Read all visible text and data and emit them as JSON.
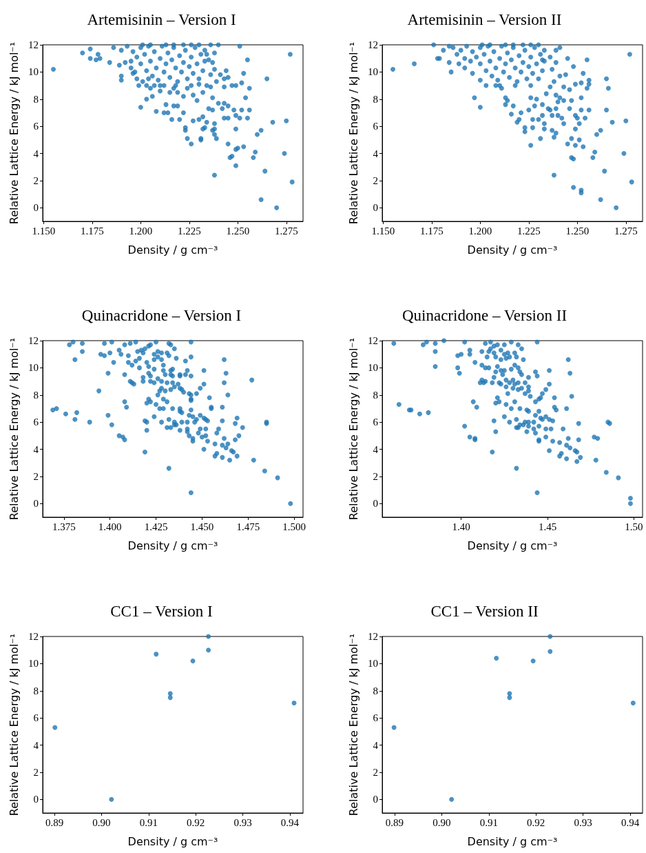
{
  "chart_data": [
    {
      "type": "scatter",
      "title": "Artemisinin – Version I",
      "xlabel": "Density / g cm⁻³",
      "ylabel": "Relative Lattice Energy / kJ mol⁻¹",
      "color": "#1f77b4",
      "marker": "circle",
      "xlim": [
        1.1495,
        1.2836
      ],
      "ylim": [
        -1,
        12
      ],
      "xticks": [
        {
          "value": 1.15,
          "label": "1.150"
        },
        {
          "value": 1.175,
          "label": "1.175"
        },
        {
          "value": 1.2,
          "label": "1.200"
        },
        {
          "value": 1.225,
          "label": "1.225"
        },
        {
          "value": 1.25,
          "label": "1.250"
        },
        {
          "value": 1.275,
          "label": "1.275"
        }
      ],
      "yticks": [
        0,
        2,
        4,
        6,
        8,
        10,
        12
      ],
      "x": [
        1.155,
        1.17,
        1.174,
        1.174,
        1.177,
        1.179,
        1.178,
        1.184,
        1.19,
        1.19,
        1.189,
        1.192,
        1.195,
        1.196,
        1.199,
        1.2,
        1.203,
        1.206,
        1.208,
        1.212,
        1.214,
        1.216,
        1.22,
        1.213,
        1.217,
        1.219,
        1.222,
        1.223,
        1.223,
        1.224,
        1.226,
        1.231,
        1.231,
        1.232,
        1.233,
        1.237,
        1.238,
        1.238,
        1.239,
        1.238,
        1.234,
        1.238,
        1.227,
        1.23,
        1.232,
        1.235,
        1.237,
        1.24,
        1.243,
        1.242,
        1.245,
        1.243,
        1.245,
        1.248,
        1.249,
        1.251,
        1.252,
        1.256,
        1.255,
        1.249,
        1.245,
        1.249,
        1.25,
        1.246,
        1.247,
        1.249,
        1.253,
        1.258,
        1.259,
        1.26,
        1.262,
        1.264,
        1.262,
        1.27,
        1.268,
        1.275,
        1.274,
        1.278,
        1.277,
        1.265,
        1.255,
        1.251,
        1.253,
        1.252,
        1.256,
        1.254,
        1.249,
        1.247,
        1.243,
        1.244,
        1.241,
        1.243,
        1.245,
        1.238,
        1.236,
        1.239,
        1.236,
        1.237,
        1.234,
        1.232,
        1.23,
        1.229,
        1.227,
        1.224,
        1.222,
        1.219,
        1.217,
        1.215,
        1.212,
        1.21,
        1.207,
        1.205,
        1.203,
        1.201,
        1.204,
        1.198,
        1.197,
        1.235,
        1.237,
        1.238,
        1.234,
        1.233,
        1.24,
        1.236,
        1.186,
        1.19,
        1.193,
        1.196,
        1.198,
        1.2,
        1.2,
        1.202,
        1.203,
        1.204,
        1.205,
        1.206,
        1.207,
        1.208,
        1.209,
        1.21,
        1.211,
        1.212,
        1.213,
        1.214,
        1.215,
        1.216,
        1.217,
        1.218,
        1.219,
        1.22,
        1.221,
        1.222,
        1.223,
        1.224,
        1.225,
        1.226,
        1.227,
        1.228,
        1.229,
        1.23,
        1.231,
        1.232,
        1.233,
        1.201,
        1.213,
        1.222,
        1.23,
        1.21,
        1.218,
        1.226,
        1.195,
        1.205,
        1.217,
        1.226
      ],
      "values": [
        10.2,
        11.4,
        11.7,
        11.0,
        10.9,
        11.0,
        11.3,
        10.7,
        9.7,
        9.4,
        10.5,
        10.7,
        10.3,
        9.9,
        9.0,
        7.4,
        8.0,
        8.2,
        7.1,
        7.0,
        7.0,
        6.5,
        6.5,
        7.6,
        7.5,
        7.5,
        7.0,
        5.9,
        5.7,
        5.1,
        4.7,
        5.1,
        5.0,
        5.8,
        5.9,
        5.7,
        5.8,
        5.4,
        5.1,
        2.4,
        6.3,
        6.2,
        6.4,
        6.5,
        6.7,
        7.3,
        7.2,
        7.7,
        7.7,
        7.3,
        7.5,
        6.6,
        6.6,
        7.2,
        6.8,
        6.6,
        7.2,
        7.2,
        6.6,
        5.8,
        4.7,
        4.3,
        4.4,
        3.7,
        3.8,
        3.1,
        4.5,
        3.7,
        4.1,
        5.4,
        5.7,
        2.7,
        0.6,
        0.0,
        6.3,
        6.4,
        4.0,
        1.9,
        11.3,
        9.5,
        10.9,
        11.9,
        9.9,
        9.2,
        8.8,
        8.1,
        9.0,
        9.0,
        8.9,
        10.1,
        9.8,
        9.5,
        9.6,
        10.2,
        9.8,
        9.3,
        8.9,
        8.1,
        9.0,
        8.5,
        9.1,
        7.9,
        8.3,
        8.8,
        8.2,
        8.5,
        8.8,
        8.5,
        9.0,
        8.6,
        9.0,
        8.8,
        9.0,
        9.3,
        9.5,
        9.5,
        10.0,
        10.9,
        10.7,
        11.4,
        11.3,
        11.6,
        12.0,
        12.0,
        11.8,
        11.6,
        11.9,
        11.5,
        11.1,
        11.8,
        10.6,
        11.3,
        10.1,
        11.9,
        10.8,
        9.7,
        11.5,
        10.3,
        9.4,
        11.0,
        11.9,
        10.0,
        10.6,
        11.4,
        9.6,
        10.9,
        11.8,
        10.3,
        9.3,
        11.2,
        10.0,
        10.7,
        11.6,
        9.5,
        10.4,
        11.1,
        9.9,
        11.8,
        10.6,
        9.5,
        11.3,
        10.1,
        10.8,
        12.0,
        12.0,
        12.0,
        12.0,
        9.0,
        9.0,
        9.0,
        10.8,
        12.0,
        12.0,
        12.0
      ]
    },
    {
      "type": "scatter",
      "title": "Artemisinin – Version II",
      "xlabel": "Density / g cm⁻³",
      "ylabel": "Relative Lattice Energy / kJ mol⁻¹",
      "color": "#1f77b4",
      "marker": "circle",
      "xlim": [
        1.1495,
        1.2836
      ],
      "ylim": [
        -1,
        12
      ],
      "xticks": [
        {
          "value": 1.15,
          "label": "1.150"
        },
        {
          "value": 1.175,
          "label": "1.175"
        },
        {
          "value": 1.2,
          "label": "1.200"
        },
        {
          "value": 1.225,
          "label": "1.225"
        },
        {
          "value": 1.25,
          "label": "1.250"
        },
        {
          "value": 1.275,
          "label": "1.275"
        }
      ],
      "yticks": [
        0,
        2,
        4,
        6,
        8,
        10,
        12
      ],
      "x": [
        1.155,
        1.166,
        1.185,
        1.197,
        1.2,
        1.231,
        1.226,
        1.238,
        1.239,
        1.237,
        1.233,
        1.233,
        1.227,
        1.223,
        1.223,
        1.219,
        1.22,
        1.216,
        1.221,
        1.227,
        1.23,
        1.232,
        1.237,
        1.24,
        1.242,
        1.239,
        1.24,
        1.243,
        1.246,
        1.247,
        1.249,
        1.235,
        1.236,
        1.239,
        1.241,
        1.234,
        1.236,
        1.238,
        1.241,
        1.244,
        1.243,
        1.246,
        1.237,
        1.239,
        1.236,
        1.239,
        1.241,
        1.233,
        1.232,
        1.213,
        1.213,
        1.217,
        1.214,
        1.226,
        1.229,
        1.232,
        1.225,
        1.228,
        1.203,
        1.208,
        1.211,
        1.2,
        1.196,
        1.192,
        1.189,
        1.184,
        1.179,
        1.178,
        1.181,
        1.176,
        1.265,
        1.266,
        1.265,
        1.256,
        1.256,
        1.255,
        1.245,
        1.255,
        1.248,
        1.253,
        1.249,
        1.252,
        1.252,
        1.252,
        1.256,
        1.254,
        1.25,
        1.251,
        1.249,
        1.243,
        1.251,
        1.247,
        1.245,
        1.249,
        1.253,
        1.247,
        1.248,
        1.258,
        1.259,
        1.26,
        1.262,
        1.268,
        1.275,
        1.274,
        1.278,
        1.264,
        1.262,
        1.27,
        1.248,
        1.252,
        1.252,
        1.238,
        1.277,
        1.186,
        1.19,
        1.193,
        1.196,
        1.198,
        1.2,
        1.2,
        1.202,
        1.203,
        1.204,
        1.205,
        1.206,
        1.207,
        1.208,
        1.209,
        1.21,
        1.211,
        1.212,
        1.213,
        1.214,
        1.215,
        1.216,
        1.217,
        1.218,
        1.219,
        1.22,
        1.221,
        1.222,
        1.223,
        1.224,
        1.225,
        1.226,
        1.227,
        1.228,
        1.229,
        1.23,
        1.231,
        1.232,
        1.233,
        1.201,
        1.213,
        1.222,
        1.23,
        1.21,
        1.218,
        1.226,
        1.195,
        1.205,
        1.217,
        1.226,
        1.184,
        1.188,
        1.192
      ],
      "values": [
        10.2,
        10.6,
        10.0,
        8.1,
        7.4,
        5.1,
        4.6,
        5.2,
        5.5,
        5.7,
        5.8,
        6.2,
        5.9,
        5.6,
        5.9,
        6.3,
        6.5,
        6.9,
        7.0,
        6.5,
        6.5,
        6.8,
        6.8,
        6.8,
        6.6,
        7.3,
        7.8,
        7.9,
        7.3,
        7.9,
        6.8,
        7.3,
        7.2,
        8.3,
        8.1,
        8.4,
        8.9,
        9.3,
        9.7,
        9.8,
        8.9,
        8.7,
        10.2,
        10.7,
        11.1,
        11.6,
        11.8,
        11.6,
        10.9,
        8.1,
        7.6,
        7.5,
        7.9,
        8.1,
        8.0,
        7.6,
        7.2,
        7.5,
        9.0,
        9.0,
        8.8,
        9.4,
        9.9,
        10.3,
        10.6,
        10.7,
        11.0,
        11.0,
        11.6,
        12.0,
        9.5,
        8.8,
        7.2,
        9.4,
        9.1,
        8.8,
        11.0,
        10.9,
        10.4,
        9.9,
        9.1,
        9.2,
        8.1,
        7.2,
        7.2,
        6.6,
        6.6,
        6.2,
        5.8,
        6.2,
        5.0,
        5.1,
        4.7,
        4.6,
        4.5,
        3.7,
        3.6,
        3.7,
        4.1,
        5.4,
        5.7,
        6.3,
        6.4,
        4.0,
        1.9,
        2.7,
        0.6,
        0.0,
        1.5,
        1.3,
        1.1,
        2.4,
        11.3,
        11.8,
        11.6,
        11.9,
        11.5,
        11.1,
        11.8,
        10.6,
        11.3,
        10.1,
        11.9,
        10.8,
        9.7,
        11.5,
        10.3,
        9.4,
        11.0,
        11.9,
        10.0,
        10.6,
        11.4,
        9.6,
        10.9,
        11.8,
        10.3,
        9.3,
        11.2,
        10.0,
        10.7,
        11.6,
        9.5,
        10.4,
        11.1,
        9.9,
        11.8,
        10.6,
        9.5,
        11.3,
        10.1,
        10.8,
        12.0,
        12.0,
        12.0,
        12.0,
        9.0,
        9.0,
        9.0,
        10.8,
        12.0,
        12.0,
        12.0,
        11.9,
        11.3,
        11.0
      ]
    },
    {
      "type": "scatter",
      "title": "Quinacridone – Version I",
      "xlabel": "Density / g cm⁻³",
      "ylabel": "Relative Lattice Energy / kJ mol⁻¹",
      "color": "#1f77b4",
      "marker": "circle",
      "xlim": [
        1.3635,
        1.5048
      ],
      "ylim": [
        -1,
        12
      ],
      "xticks": [
        {
          "value": 1.375,
          "label": "1.375"
        },
        {
          "value": 1.4,
          "label": "1.400"
        },
        {
          "value": 1.425,
          "label": "1.425"
        },
        {
          "value": 1.45,
          "label": "1.450"
        },
        {
          "value": 1.475,
          "label": "1.475"
        },
        {
          "value": 1.5,
          "label": "1.500"
        }
      ],
      "yticks": [
        0,
        2,
        4,
        6,
        8,
        10,
        12
      ],
      "x": [
        1.369,
        1.371,
        1.376,
        1.382,
        1.381,
        1.389,
        1.378,
        1.38,
        1.385,
        1.385,
        1.381,
        1.394,
        1.399,
        1.395,
        1.397,
        1.4,
        1.397,
        1.401,
        1.402,
        1.399,
        1.401,
        1.405,
        1.407,
        1.408,
        1.408,
        1.409,
        1.408,
        1.405,
        1.406,
        1.408,
        1.411,
        1.414,
        1.41,
        1.41,
        1.412,
        1.411,
        1.412,
        1.413,
        1.414,
        1.416,
        1.418,
        1.418,
        1.419,
        1.42,
        1.42,
        1.419,
        1.42,
        1.421,
        1.422,
        1.415,
        1.417,
        1.418,
        1.416,
        1.419,
        1.421,
        1.422,
        1.425,
        1.42,
        1.421,
        1.424,
        1.424,
        1.426,
        1.426,
        1.428,
        1.428,
        1.421,
        1.422,
        1.424,
        1.422,
        1.424,
        1.426,
        1.428,
        1.429,
        1.429,
        1.43,
        1.431,
        1.432,
        1.433,
        1.431,
        1.433,
        1.431,
        1.429,
        1.43,
        1.428,
        1.427,
        1.426,
        1.425,
        1.427,
        1.429,
        1.424,
        1.428,
        1.431,
        1.432,
        1.433,
        1.434,
        1.435,
        1.435,
        1.436,
        1.438,
        1.438,
        1.439,
        1.438,
        1.439,
        1.442,
        1.442,
        1.442,
        1.443,
        1.443,
        1.444,
        1.445,
        1.445,
        1.445,
        1.446,
        1.447,
        1.444,
        1.444,
        1.444,
        1.443,
        1.44,
        1.439,
        1.438,
        1.437,
        1.435,
        1.434,
        1.434,
        1.434,
        1.433,
        1.433,
        1.438,
        1.438,
        1.441,
        1.442,
        1.444,
        1.444,
        1.444,
        1.441,
        1.435,
        1.432,
        1.436,
        1.448,
        1.449,
        1.449,
        1.45,
        1.451,
        1.452,
        1.452,
        1.452,
        1.453,
        1.453,
        1.451,
        1.449,
        1.447,
        1.451,
        1.451,
        1.454,
        1.455,
        1.455,
        1.458,
        1.459,
        1.457,
        1.457,
        1.458,
        1.461,
        1.461,
        1.461,
        1.461,
        1.462,
        1.464,
        1.463,
        1.466,
        1.467,
        1.465,
        1.469,
        1.468,
        1.468,
        1.469,
        1.47,
        1.472,
        1.478,
        1.484,
        1.491,
        1.498,
        1.485,
        1.485,
        1.477,
        1.464,
        1.462,
        1.463,
        1.462,
        1.432,
        1.444
      ],
      "values": [
        6.9,
        7.0,
        6.6,
        6.7,
        6.2,
        6.0,
        11.7,
        11.9,
        11.8,
        11.2,
        10.6,
        8.3,
        9.6,
        11.0,
        10.9,
        11.1,
        11.8,
        11.9,
        10.4,
        6.5,
        5.8,
        5.0,
        4.9,
        4.7,
        7.5,
        7.1,
        9.5,
        11.3,
        11.0,
        11.7,
        11.8,
        11.9,
        10.9,
        10.4,
        10.2,
        9.0,
        8.9,
        8.8,
        10.5,
        10.0,
        9.0,
        9.3,
        6.1,
        6.0,
        5.4,
        3.8,
        7.4,
        7.7,
        7.5,
        11.2,
        11.3,
        11.1,
        10.7,
        11.4,
        11.6,
        11.7,
        11.9,
        10.4,
        10.1,
        10.6,
        11.0,
        11.2,
        10.8,
        11.1,
        10.6,
        9.6,
        9.4,
        9.9,
        9.0,
        8.9,
        9.2,
        9.0,
        10.2,
        9.8,
        9.5,
        11.1,
        10.9,
        11.7,
        8.9,
        8.4,
        7.5,
        7.7,
        8.3,
        8.5,
        8.3,
        8.0,
        7.3,
        7.0,
        7.0,
        6.4,
        6.0,
        5.6,
        6.2,
        5.6,
        7.0,
        5.8,
        6.0,
        5.8,
        7.0,
        6.8,
        6.7,
        5.4,
        6.0,
        6.0,
        5.5,
        5.3,
        5.0,
        6.5,
        6.9,
        6.4,
        4.6,
        4.8,
        6.0,
        6.2,
        7.7,
        8.0,
        7.6,
        8.1,
        8.2,
        8.4,
        8.5,
        8.8,
        8.6,
        8.9,
        9.4,
        9.9,
        9.8,
        9.5,
        9.4,
        9.5,
        9.5,
        9.8,
        9.4,
        10.8,
        11.9,
        10.5,
        11.4,
        11.8,
        10.7,
        5.2,
        5.5,
        6.5,
        4.9,
        6.3,
        5.0,
        5.5,
        6.2,
        6.1,
        4.6,
        4.0,
        8.5,
        8.1,
        9.8,
        8.8,
        7.8,
        7.1,
        7.0,
        5.2,
        5.5,
        4.4,
        3.5,
        3.7,
        4.3,
        3.4,
        6.1,
        7.1,
        4.8,
        4.4,
        4.1,
        3.9,
        3.8,
        3.2,
        3.5,
        4.7,
        5.9,
        6.3,
        5.0,
        5.6,
        3.2,
        2.4,
        1.9,
        0.0,
        6.0,
        5.9,
        9.1,
        8.0,
        8.9,
        9.6,
        10.6,
        2.6,
        0.8
      ]
    },
    {
      "type": "scatter",
      "title": "Quinacridone – Version II",
      "xlabel": "Density / g cm⁻³",
      "ylabel": "Relative Lattice Energy / kJ mol⁻¹",
      "color": "#1f77b4",
      "marker": "circle",
      "xlim": [
        1.3543,
        1.505
      ],
      "ylim": [
        -1,
        12
      ],
      "xticks": [
        {
          "value": 1.4,
          "label": "1.40"
        },
        {
          "value": 1.45,
          "label": "1.45"
        },
        {
          "value": 1.5,
          "label": "1.50"
        }
      ],
      "yticks": [
        0,
        2,
        4,
        6,
        8,
        10,
        12
      ],
      "x": [
        1.361,
        1.364,
        1.37,
        1.371,
        1.376,
        1.381,
        1.378,
        1.38,
        1.385,
        1.385,
        1.385,
        1.39,
        1.398,
        1.4,
        1.402,
        1.398,
        1.399,
        1.402,
        1.405,
        1.408,
        1.408,
        1.407,
        1.409,
        1.408,
        1.405,
        1.405,
        1.412,
        1.412,
        1.414,
        1.416,
        1.412,
        1.413,
        1.411,
        1.414,
        1.418,
        1.419,
        1.42,
        1.421,
        1.42,
        1.422,
        1.419,
        1.42,
        1.418,
        1.415,
        1.416,
        1.417,
        1.419,
        1.42,
        1.414,
        1.417,
        1.419,
        1.421,
        1.423,
        1.425,
        1.426,
        1.427,
        1.428,
        1.425,
        1.423,
        1.421,
        1.423,
        1.424,
        1.425,
        1.422,
        1.423,
        1.426,
        1.426,
        1.428,
        1.43,
        1.429,
        1.431,
        1.433,
        1.434,
        1.435,
        1.433,
        1.435,
        1.432,
        1.436,
        1.431,
        1.444,
        1.429,
        1.439,
        1.443,
        1.444,
        1.431,
        1.433,
        1.437,
        1.43,
        1.433,
        1.435,
        1.439,
        1.439,
        1.437,
        1.427,
        1.44,
        1.443,
        1.445,
        1.446,
        1.447,
        1.449,
        1.451,
        1.451,
        1.462,
        1.463,
        1.464,
        1.454,
        1.454,
        1.455,
        1.461,
        1.426,
        1.431,
        1.429,
        1.434,
        1.438,
        1.439,
        1.445,
        1.443,
        1.446,
        1.447,
        1.449,
        1.451,
        1.453,
        1.425,
        1.428,
        1.432,
        1.432,
        1.433,
        1.434,
        1.436,
        1.437,
        1.439,
        1.438,
        1.439,
        1.442,
        1.443,
        1.442,
        1.445,
        1.449,
        1.452,
        1.459,
        1.449,
        1.445,
        1.445,
        1.453,
        1.457,
        1.462,
        1.468,
        1.468,
        1.461,
        1.463,
        1.466,
        1.467,
        1.467,
        1.469,
        1.451,
        1.457,
        1.458,
        1.461,
        1.478,
        1.477,
        1.479,
        1.485,
        1.486,
        1.484,
        1.491,
        1.498,
        1.498,
        1.432,
        1.444
      ],
      "values": [
        11.8,
        7.3,
        6.9,
        6.9,
        6.6,
        6.7,
        11.7,
        11.9,
        11.8,
        11.2,
        10.1,
        12.0,
        10.9,
        11.0,
        11.9,
        10.0,
        9.6,
        5.7,
        4.9,
        4.8,
        4.7,
        7.5,
        7.1,
        10.4,
        11.3,
        11.0,
        11.2,
        10.2,
        10.0,
        10.0,
        9.1,
        8.9,
        8.9,
        9.0,
        8.9,
        9.3,
        9.7,
        7.8,
        7.4,
        7.5,
        6.1,
        5.3,
        3.8,
        10.8,
        11.2,
        11.4,
        11.1,
        10.8,
        11.8,
        11.9,
        11.6,
        11.7,
        11.3,
        11.0,
        10.7,
        11.1,
        10.8,
        11.7,
        10.6,
        10.1,
        9.8,
        9.5,
        9.8,
        8.9,
        8.8,
        9.1,
        8.6,
        8.9,
        9.1,
        9.9,
        10.2,
        10.0,
        9.7,
        9.5,
        11.7,
        11.4,
        10.8,
        10.6,
        11.1,
        11.9,
        11.9,
        9.3,
        9.7,
        9.4,
        8.8,
        8.9,
        8.9,
        8.5,
        8.4,
        8.5,
        8.6,
        8.3,
        8.1,
        8.1,
        7.9,
        7.5,
        7.7,
        7.8,
        8.1,
        8.4,
        8.8,
        9.8,
        10.6,
        9.6,
        7.9,
        7.8,
        7.1,
        6.9,
        7.0,
        7.3,
        7.5,
        7.0,
        7.0,
        6.9,
        6.8,
        6.8,
        6.5,
        6.3,
        6.2,
        6.4,
        6.2,
        6.1,
        6.4,
        6.0,
        6.2,
        5.6,
        5.6,
        5.8,
        5.8,
        6.0,
        6.0,
        5.3,
        5.7,
        5.5,
        5.2,
        6.0,
        5.7,
        5.5,
        5.5,
        5.5,
        4.9,
        4.7,
        4.6,
        4.6,
        4.5,
        4.8,
        4.7,
        5.9,
        4.3,
        4.1,
        3.9,
        3.8,
        3.1,
        3.4,
        3.9,
        3.5,
        3.7,
        3.3,
        3.2,
        4.9,
        4.8,
        6.0,
        5.9,
        2.3,
        1.9,
        0.4,
        0.0,
        2.6,
        0.8
      ]
    },
    {
      "type": "scatter",
      "title": "CC1 – Version I",
      "xlabel": "Density / g cm⁻³",
      "ylabel": "Relative Lattice Energy / kJ mol⁻¹",
      "color": "#1f77b4",
      "marker": "circle",
      "xlim": [
        0.8875,
        0.9428
      ],
      "ylim": [
        -1,
        12
      ],
      "xticks": [
        0.89,
        {
          "value": 0.9,
          "label": "0.90"
        },
        0.91,
        0.92,
        0.93,
        0.94
      ],
      "yticks": [
        0,
        2,
        4,
        6,
        8,
        10,
        12
      ],
      "x": [
        0.8901,
        0.9021,
        0.9116,
        0.9146,
        0.9146,
        0.9194,
        0.9227,
        0.9227,
        0.9409
      ],
      "values": [
        5.3,
        0.0,
        10.7,
        7.8,
        7.5,
        10.2,
        11.0,
        12.0,
        7.1
      ]
    },
    {
      "type": "scatter",
      "title": "CC1 – Version II",
      "xlabel": "Density / g cm⁻³",
      "ylabel": "Relative Lattice Energy / kJ mol⁻¹",
      "color": "#1f77b4",
      "marker": "circle",
      "xlim": [
        0.8874,
        0.9426
      ],
      "ylim": [
        -1,
        12
      ],
      "xticks": [
        0.89,
        {
          "value": 0.9,
          "label": "0.90"
        },
        0.91,
        0.92,
        0.93,
        0.94
      ],
      "yticks": [
        0,
        2,
        4,
        6,
        8,
        10,
        12
      ],
      "x": [
        0.8899,
        0.9021,
        0.9116,
        0.9144,
        0.9144,
        0.9194,
        0.923,
        0.923,
        0.9406
      ],
      "values": [
        5.3,
        0.0,
        10.4,
        7.8,
        7.5,
        10.2,
        10.9,
        12.0,
        7.1
      ]
    }
  ]
}
